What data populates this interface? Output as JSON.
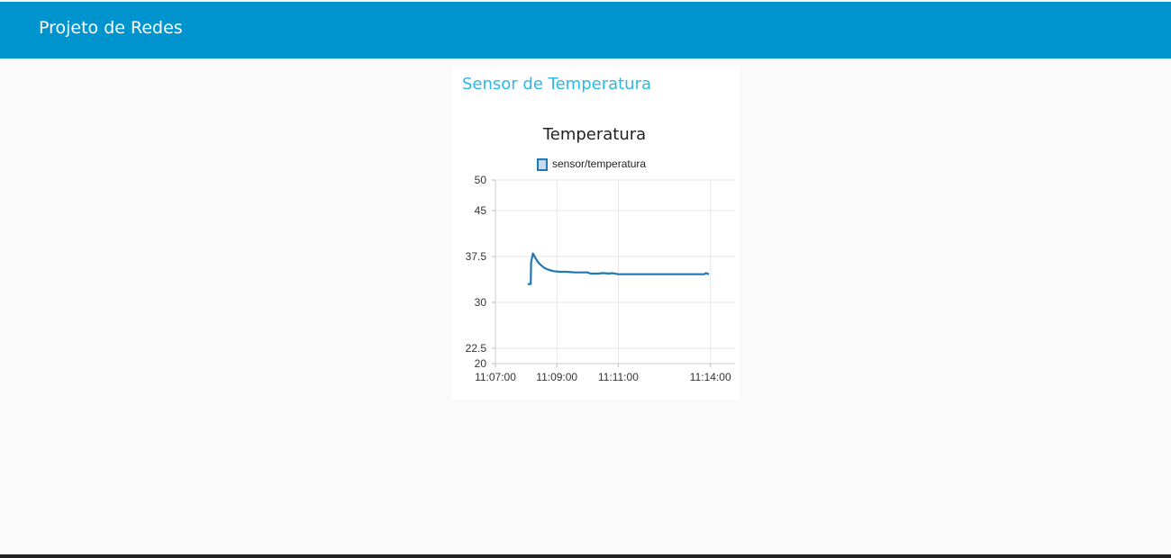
{
  "app": {
    "title": "Projeto de Redes"
  },
  "card": {
    "title": "Sensor de Temperatura"
  },
  "colors": {
    "toolbar": "#0094ce",
    "card_title": "#2cb8e4",
    "series": "#1f77b4"
  },
  "chart_data": {
    "type": "line",
    "title": "Temperatura",
    "xlabel": "",
    "ylabel": "",
    "legend_position": "top-center",
    "grid": true,
    "x_ticks": [
      "11:07:00",
      "11:09:00",
      "11:11:00",
      "11:14:00"
    ],
    "x_tick_minutes": [
      0,
      2,
      4,
      7
    ],
    "xlim_minutes": [
      0,
      7.8
    ],
    "y_ticks": [
      "20",
      "22.5",
      "30",
      "37.5",
      "45",
      "50"
    ],
    "y_tick_values": [
      20,
      22.5,
      30,
      37.5,
      45,
      50
    ],
    "ylim": [
      20,
      50
    ],
    "series": [
      {
        "name": "sensor/temperatura",
        "color": "#1f77b4",
        "x_minutes": [
          1.05,
          1.15,
          1.16,
          1.22,
          1.3,
          1.4,
          1.5,
          1.6,
          1.75,
          1.9,
          2.1,
          2.3,
          2.6,
          3.0,
          3.1,
          3.35,
          3.5,
          3.7,
          3.8,
          4.0,
          5.0,
          6.0,
          6.8,
          6.85,
          6.95
        ],
        "values": [
          33,
          33,
          36.5,
          38.0,
          37.3,
          36.5,
          36.0,
          35.6,
          35.3,
          35.1,
          35.0,
          35.0,
          34.9,
          34.9,
          34.7,
          34.7,
          34.8,
          34.7,
          34.8,
          34.6,
          34.6,
          34.6,
          34.6,
          34.8,
          34.6
        ]
      }
    ]
  }
}
